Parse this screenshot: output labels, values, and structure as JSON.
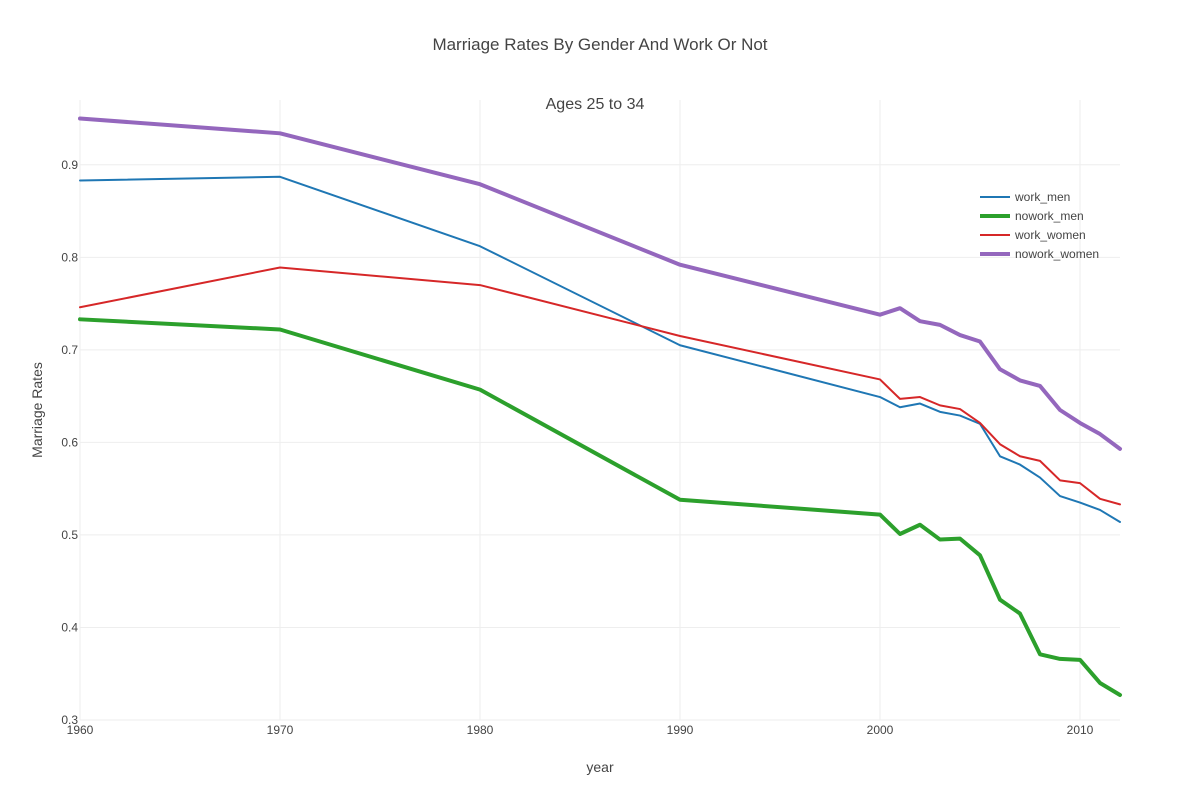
{
  "chart_data": {
    "type": "line",
    "title": "Marriage Rates By Gender And Work Or Not",
    "annotation": "Ages 25 to 34",
    "xlabel": "year",
    "ylabel": "Marriage Rates",
    "xlim": [
      1960,
      2012
    ],
    "ylim": [
      0.3,
      0.97
    ],
    "x_ticks": [
      1960,
      1970,
      1980,
      1990,
      2000,
      2010
    ],
    "x_tick_labels": [
      "1960",
      "1970",
      "1980",
      "1990",
      "2000",
      "2010"
    ],
    "y_ticks": [
      0.3,
      0.4,
      0.5,
      0.6,
      0.7,
      0.8,
      0.9
    ],
    "y_tick_labels": [
      "0.3",
      "0.4",
      "0.5",
      "0.6",
      "0.7",
      "0.8",
      "0.9"
    ],
    "grid": true,
    "legend_position": "top-right",
    "x": [
      1960,
      1970,
      1980,
      1990,
      2000,
      2001,
      2002,
      2003,
      2004,
      2005,
      2006,
      2007,
      2008,
      2009,
      2010,
      2011,
      2012
    ],
    "series": [
      {
        "name": "work_men",
        "color": "#1f77b4",
        "line_width": 2,
        "values": [
          0.883,
          0.887,
          0.812,
          0.705,
          0.649,
          0.638,
          0.642,
          0.633,
          0.629,
          0.62,
          0.585,
          0.576,
          0.562,
          0.542,
          0.535,
          0.527,
          0.514
        ]
      },
      {
        "name": "nowork_men",
        "color": "#2ca02c",
        "line_width": 4,
        "values": [
          0.733,
          0.722,
          0.657,
          0.538,
          0.522,
          0.501,
          0.511,
          0.495,
          0.496,
          0.478,
          0.43,
          0.415,
          0.371,
          0.366,
          0.365,
          0.34,
          0.327
        ]
      },
      {
        "name": "work_women",
        "color": "#d62728",
        "line_width": 2,
        "values": [
          0.746,
          0.789,
          0.77,
          0.715,
          0.668,
          0.647,
          0.649,
          0.64,
          0.636,
          0.621,
          0.598,
          0.585,
          0.58,
          0.559,
          0.556,
          0.539,
          0.533
        ]
      },
      {
        "name": "nowork_women",
        "color": "#9467bd",
        "line_width": 4,
        "values": [
          0.95,
          0.934,
          0.879,
          0.792,
          0.738,
          0.745,
          0.731,
          0.727,
          0.716,
          0.709,
          0.679,
          0.667,
          0.661,
          0.635,
          0.621,
          0.609,
          0.593
        ]
      }
    ]
  }
}
